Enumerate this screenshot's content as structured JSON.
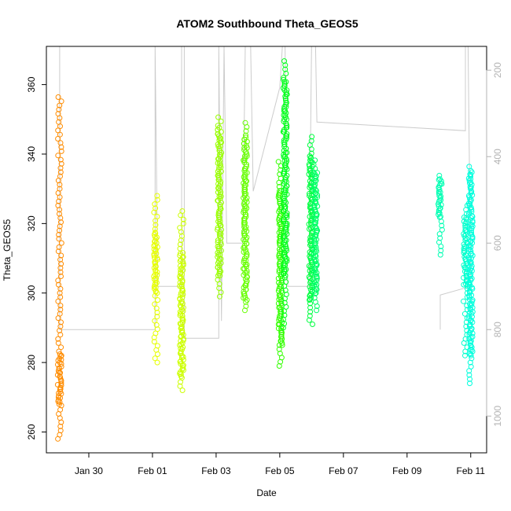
{
  "chart_data": {
    "type": "scatter",
    "title": "ATOM2 Southbound Theta_GEOS5",
    "xlabel": "Date",
    "ylabel": "Theta_GEOS5",
    "x_range": [
      "2017-01-28T16:00",
      "2017-02-11T12:00"
    ],
    "ylim": [
      254,
      371
    ],
    "y2lim": [
      1085,
      145
    ],
    "x_ticks": [
      {
        "date": "2017-01-30",
        "label": "Jan 30"
      },
      {
        "date": "2017-02-01",
        "label": "Feb 01"
      },
      {
        "date": "2017-02-03",
        "label": "Feb 03"
      },
      {
        "date": "2017-02-05",
        "label": "Feb 05"
      },
      {
        "date": "2017-02-07",
        "label": "Feb 07"
      },
      {
        "date": "2017-02-09",
        "label": "Feb 09"
      },
      {
        "date": "2017-02-11",
        "label": "Feb 11"
      }
    ],
    "y_ticks": [
      260,
      280,
      300,
      320,
      340,
      360
    ],
    "y2_ticks": [
      200,
      400,
      600,
      800,
      1000
    ],
    "grid": false,
    "pressure_color": "#cccccc",
    "axis2_color": "#b3b3b3",
    "series": [
      {
        "date": "2017-01-29T02:00",
        "ymin": 258,
        "ymax": 357,
        "ydense": [
          268,
          283
        ],
        "color": "#ff8c00"
      },
      {
        "date": "2017-02-01T02:30",
        "ymin": 280,
        "ymax": 329,
        "ydense": [
          300,
          318
        ],
        "color": "#e6ff00"
      },
      {
        "date": "2017-02-01T22:00",
        "ymin": 272,
        "ymax": 324,
        "ydense": [
          276,
          312
        ],
        "color": "#ccff00"
      },
      {
        "date": "2017-02-03T02:30",
        "ymin": 299,
        "ymax": 351,
        "ydense": [
          305,
          348
        ],
        "color": "#99ff00"
      },
      {
        "date": "2017-02-03T22:00",
        "ymin": 295,
        "ymax": 350,
        "ydense": [
          298,
          345
        ],
        "color": "#66ff00"
      },
      {
        "date": "2017-02-05T00:30",
        "ymin": 279,
        "ymax": 338,
        "ydense": [
          285,
          330
        ],
        "color": "#33ff00"
      },
      {
        "date": "2017-02-05T04:00",
        "ymin": 290,
        "ymax": 367,
        "ydense": [
          305,
          362
        ],
        "color": "#00ff1a"
      },
      {
        "date": "2017-02-05T23:30",
        "ymin": 291,
        "ymax": 346,
        "ydense": [
          298,
          340
        ],
        "color": "#00ff40"
      },
      {
        "date": "2017-02-06T03:00",
        "ymin": 295,
        "ymax": 339,
        "ydense": [
          300,
          335
        ],
        "color": "#00ff66"
      },
      {
        "date": "2017-02-10T01:00",
        "ymin": 311,
        "ymax": 334,
        "ydense": [
          322,
          333
        ],
        "color": "#00ffb3"
      },
      {
        "date": "2017-02-10T20:00",
        "ymin": 282,
        "ymax": 326,
        "ydense": [
          302,
          322
        ],
        "color": "#00ffcc"
      },
      {
        "date": "2017-02-11T00:00",
        "ymin": 274,
        "ymax": 337,
        "ydense": [
          282,
          335
        ],
        "color": "#00ffdd"
      }
    ],
    "pressure_trace": [
      [
        "2017-01-29T02:00",
        145
      ],
      [
        "2017-01-29T02:00",
        800
      ],
      [
        "2017-02-01T02:00",
        800
      ],
      [
        "2017-02-01T02:00",
        145
      ],
      [
        "2017-02-01T04:00",
        700
      ],
      [
        "2017-02-01T22:00",
        700
      ],
      [
        "2017-02-01T22:00",
        145
      ],
      [
        "2017-02-02T00:00",
        145
      ],
      [
        "2017-02-02T00:00",
        820
      ],
      [
        "2017-02-03T02:00",
        820
      ],
      [
        "2017-02-03T02:00",
        145
      ],
      [
        "2017-02-03T04:00",
        780
      ],
      [
        "2017-02-03T06:00",
        145
      ],
      [
        "2017-02-03T08:00",
        600
      ],
      [
        "2017-02-03T20:00",
        600
      ],
      [
        "2017-02-03T22:00",
        145
      ],
      [
        "2017-02-04T02:00",
        145
      ],
      [
        "2017-02-04T04:00",
        480
      ],
      [
        "2017-02-05T00:00",
        240
      ],
      [
        "2017-02-05T02:00",
        145
      ],
      [
        "2017-02-05T04:00",
        145
      ],
      [
        "2017-02-05T06:00",
        700
      ],
      [
        "2017-02-05T22:00",
        700
      ],
      [
        "2017-02-06T00:00",
        145
      ],
      [
        "2017-02-06T03:00",
        145
      ],
      [
        "2017-02-06T04:00",
        320
      ],
      [
        "2017-02-10T20:00",
        340
      ],
      [
        "2017-02-10T20:00",
        145
      ],
      [
        "2017-02-10T22:00",
        145
      ],
      [
        "2017-02-11T00:00",
        700
      ],
      [
        "2017-02-10T01:00",
        720
      ],
      [
        "2017-02-10T01:00",
        800
      ]
    ]
  }
}
